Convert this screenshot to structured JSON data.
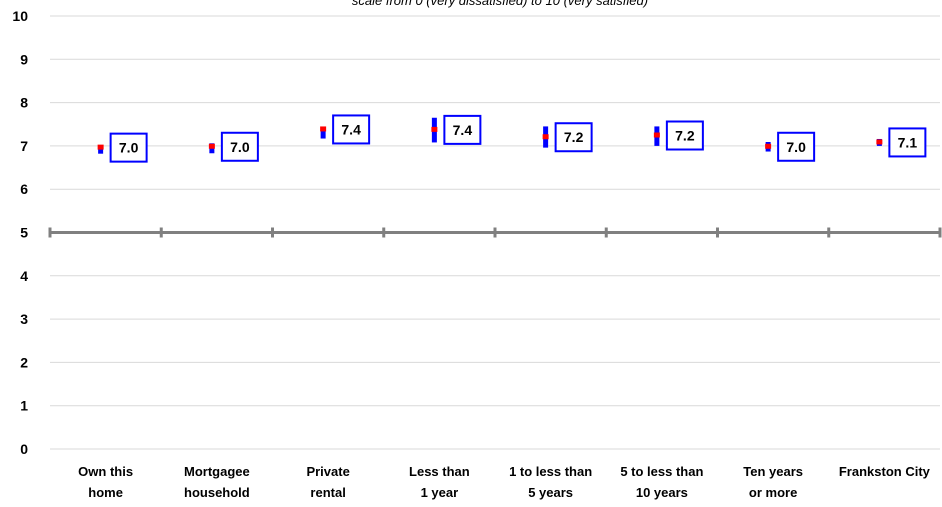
{
  "chart_data": {
    "type": "scatter",
    "subtitle": "scale from 0 (very dissatisfied) to 10 (very satisfied)",
    "title": "",
    "xlabel": "",
    "ylabel": "",
    "ylim": [
      0,
      10
    ],
    "y_ticks": [
      "0",
      "1",
      "2",
      "3",
      "4",
      "5",
      "6",
      "7",
      "8",
      "9",
      "10"
    ],
    "grid": true,
    "reference_line": 5,
    "categories": [
      [
        "Own this",
        "home"
      ],
      [
        "Mortgagee",
        "household"
      ],
      [
        "Private",
        "rental"
      ],
      [
        "Less than",
        "1 year"
      ],
      [
        "1 to less than",
        "5 years"
      ],
      [
        "5 to less than",
        "10 years"
      ],
      [
        "Ten years",
        "or more"
      ],
      [
        "Frankston City",
        ""
      ]
    ],
    "series": [
      {
        "values": [
          6.96,
          6.98,
          7.38,
          7.37,
          7.2,
          7.24,
          6.98,
          7.08
        ]
      }
    ],
    "ci_low": [
      6.82,
      6.83,
      7.17,
      7.08,
      6.96,
      7.0,
      6.87,
      7.0
    ],
    "ci_high": [
      7.02,
      7.06,
      7.43,
      7.65,
      7.45,
      7.45,
      7.09,
      7.16
    ],
    "data_labels": [
      "7.0",
      "7.0",
      "7.4",
      "7.4",
      "7.2",
      "7.2",
      "7.0",
      "7.1"
    ],
    "colors": {
      "interval": "#0000ff",
      "mean_point": "#ff0000",
      "label_border": "#0000ff",
      "gridline": "#d9d9d9",
      "reference_line": "#808080"
    }
  }
}
